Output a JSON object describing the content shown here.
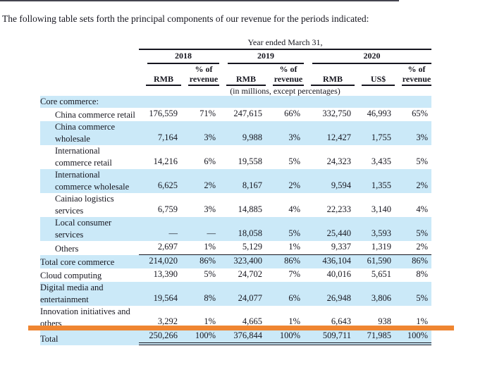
{
  "intro": "The following table sets forth the principal components of our revenue for the periods indicated:",
  "table": {
    "spanner": "Year ended March 31,",
    "year_groups": [
      {
        "label": "2018",
        "cols": 2
      },
      {
        "label": "2019",
        "cols": 2
      },
      {
        "label": "2020",
        "cols": 3
      }
    ],
    "col_headers": [
      {
        "top": "",
        "bottom": "RMB"
      },
      {
        "top": "% of",
        "bottom": "revenue"
      },
      {
        "top": "",
        "bottom": "RMB"
      },
      {
        "top": "% of",
        "bottom": "revenue"
      },
      {
        "top": "",
        "bottom": "RMB"
      },
      {
        "top": "",
        "bottom": "US$"
      },
      {
        "top": "% of",
        "bottom": "revenue"
      }
    ],
    "units_note": "(in millions, except percentages)",
    "rows": [
      {
        "label": "Core commerce:",
        "indent": 0,
        "shaded": true,
        "rule": "none",
        "values": [
          "",
          "",
          "",
          "",
          "",
          "",
          ""
        ]
      },
      {
        "label": "China commerce retail",
        "indent": 1,
        "shaded": false,
        "rule": "none",
        "values": [
          "176,559",
          "71%",
          "247,615",
          "66%",
          "332,750",
          "46,993",
          "65%"
        ]
      },
      {
        "label": "China commerce wholesale",
        "indent": 1,
        "shaded": true,
        "rule": "none",
        "values": [
          "7,164",
          "3%",
          "9,988",
          "3%",
          "12,427",
          "1,755",
          "3%"
        ]
      },
      {
        "label": "International commerce retail",
        "indent": 1,
        "shaded": false,
        "rule": "none",
        "values": [
          "14,216",
          "6%",
          "19,558",
          "5%",
          "24,323",
          "3,435",
          "5%"
        ]
      },
      {
        "label": "International commerce wholesale",
        "indent": 1,
        "shaded": true,
        "rule": "none",
        "values": [
          "6,625",
          "2%",
          "8,167",
          "2%",
          "9,594",
          "1,355",
          "2%"
        ]
      },
      {
        "label": "Cainiao logistics services",
        "indent": 1,
        "shaded": false,
        "rule": "none",
        "values": [
          "6,759",
          "3%",
          "14,885",
          "4%",
          "22,233",
          "3,140",
          "4%"
        ]
      },
      {
        "label": "Local consumer services",
        "indent": 1,
        "shaded": true,
        "rule": "none",
        "values": [
          "—",
          "—",
          "18,058",
          "5%",
          "25,440",
          "3,593",
          "5%"
        ]
      },
      {
        "label": "Others",
        "indent": 1,
        "shaded": false,
        "rule": "single",
        "values": [
          "2,697",
          "1%",
          "5,129",
          "1%",
          "9,337",
          "1,319",
          "2%"
        ]
      },
      {
        "label": "Total core commerce",
        "indent": 0,
        "shaded": true,
        "rule": "none",
        "values": [
          "214,020",
          "86%",
          "323,400",
          "86%",
          "436,104",
          "61,590",
          "86%"
        ]
      },
      {
        "label": "Cloud computing",
        "indent": 0,
        "shaded": false,
        "rule": "none",
        "values": [
          "13,390",
          "5%",
          "24,702",
          "7%",
          "40,016",
          "5,651",
          "8%"
        ]
      },
      {
        "label": "Digital media and entertainment",
        "indent": 0,
        "shaded": true,
        "rule": "none",
        "values": [
          "19,564",
          "8%",
          "24,077",
          "6%",
          "26,948",
          "3,806",
          "5%"
        ]
      },
      {
        "label": "Innovation initiatives and others",
        "indent": 0,
        "shaded": false,
        "rule": "single",
        "values": [
          "3,292",
          "1%",
          "4,665",
          "1%",
          "6,643",
          "938",
          "1%"
        ]
      },
      {
        "label": "Total",
        "indent": 0,
        "shaded": true,
        "rule": "double",
        "values": [
          "250,266",
          "100%",
          "376,844",
          "100%",
          "509,711",
          "71,985",
          "100%"
        ]
      }
    ]
  },
  "annotation": {
    "type": "highlight-bar",
    "color": "#ef8531"
  },
  "colors": {
    "row_highlight": "#cbe9f8",
    "rule": "#15151f",
    "text": "#16161f",
    "background": "#ffffff"
  }
}
